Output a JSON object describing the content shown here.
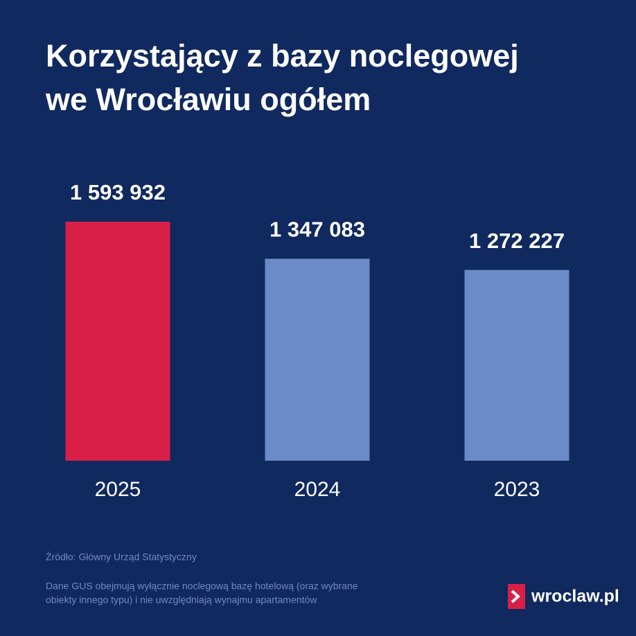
{
  "chart_data": {
    "type": "bar",
    "title": [
      "Korzystający z bazy noclegowej",
      "we Wrocławiu ogółem"
    ],
    "categories": [
      "2025",
      "2024",
      "2023"
    ],
    "values": [
      1593932,
      1347083,
      1272227
    ],
    "value_labels": [
      "1 593 932",
      "1 347 083",
      "1 272 227"
    ],
    "colors": [
      "#d91f48",
      "#6b8bc8",
      "#6b8bc8"
    ],
    "source": "Źródło: Główny Urząd Statystyczny",
    "note": [
      "Dane GUS obejmują wyłącznie noclegową bazę hotelową (oraz wybrane",
      "obiekty innego typu) i nie uwzględniają wynajmu apartamentów"
    ],
    "logo": "wroclaw.pl"
  }
}
